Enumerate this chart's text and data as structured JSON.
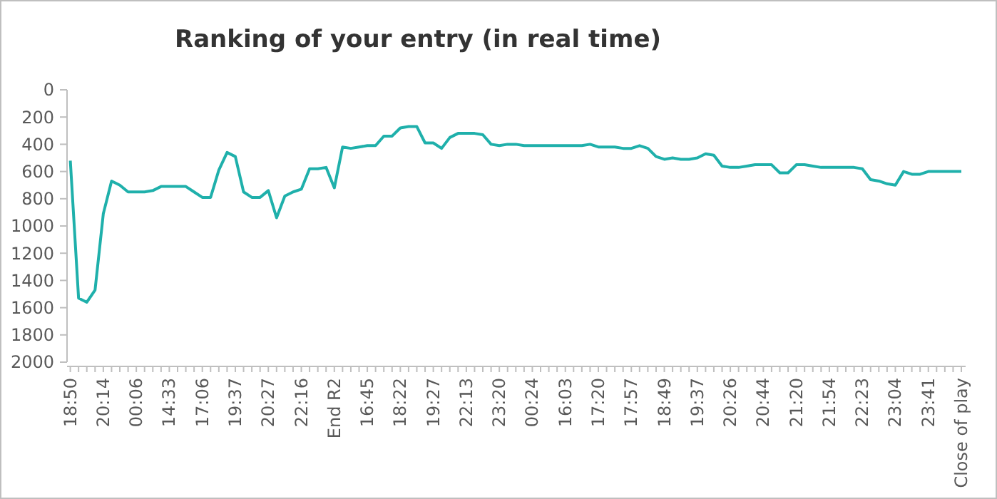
{
  "chart_data": {
    "type": "line",
    "title": "Ranking of your entry (in real time)",
    "categories": [
      "18:50",
      null,
      null,
      null,
      "20:14",
      null,
      null,
      null,
      "00:06",
      null,
      null,
      null,
      "14:33",
      null,
      null,
      null,
      "17:06",
      null,
      null,
      null,
      "19:37",
      null,
      null,
      null,
      "20:27",
      null,
      null,
      null,
      "22:16",
      null,
      null,
      null,
      "End R2",
      null,
      null,
      null,
      "16:45",
      null,
      null,
      null,
      "18:22",
      null,
      null,
      null,
      "19:27",
      null,
      null,
      null,
      "22:13",
      null,
      null,
      null,
      "23:20",
      null,
      null,
      null,
      "00:24",
      null,
      null,
      null,
      "16:03",
      null,
      null,
      null,
      "17:20",
      null,
      null,
      null,
      "17:57",
      null,
      null,
      null,
      "18:49",
      null,
      null,
      null,
      "19:37",
      null,
      null,
      null,
      "20:26",
      null,
      null,
      null,
      "20:44",
      null,
      null,
      null,
      "21:20",
      null,
      null,
      null,
      "21:54",
      null,
      null,
      null,
      "22:23",
      null,
      null,
      null,
      "23:04",
      null,
      null,
      null,
      "23:41",
      null,
      null,
      null,
      "Close of play"
    ],
    "series": [
      {
        "color": "#1fb0ab",
        "values": [
          520,
          1530,
          1560,
          1470,
          910,
          670,
          700,
          750,
          750,
          750,
          740,
          710,
          710,
          710,
          710,
          750,
          790,
          790,
          590,
          460,
          490,
          750,
          790,
          790,
          740,
          940,
          780,
          750,
          730,
          580,
          580,
          570,
          720,
          420,
          430,
          420,
          410,
          410,
          340,
          340,
          280,
          270,
          270,
          390,
          390,
          430,
          350,
          320,
          320,
          320,
          330,
          400,
          410,
          400,
          400,
          410,
          410,
          410,
          410,
          410,
          410,
          410,
          410,
          400,
          420,
          420,
          420,
          430,
          430,
          410,
          430,
          490,
          510,
          500,
          510,
          510,
          500,
          470,
          480,
          560,
          570,
          570,
          560,
          550,
          550,
          550,
          610,
          610,
          550,
          550,
          560,
          570,
          570,
          570,
          570,
          570,
          580,
          660,
          670,
          690,
          700,
          600,
          620,
          620,
          600,
          600,
          600,
          600,
          600
        ]
      }
    ],
    "ylim": [
      2000,
      0
    ],
    "yticks": [
      0,
      200,
      400,
      600,
      800,
      1000,
      1200,
      1400,
      1600,
      1800,
      2000
    ],
    "grid": false,
    "marker": "none",
    "line_style": "solid"
  }
}
